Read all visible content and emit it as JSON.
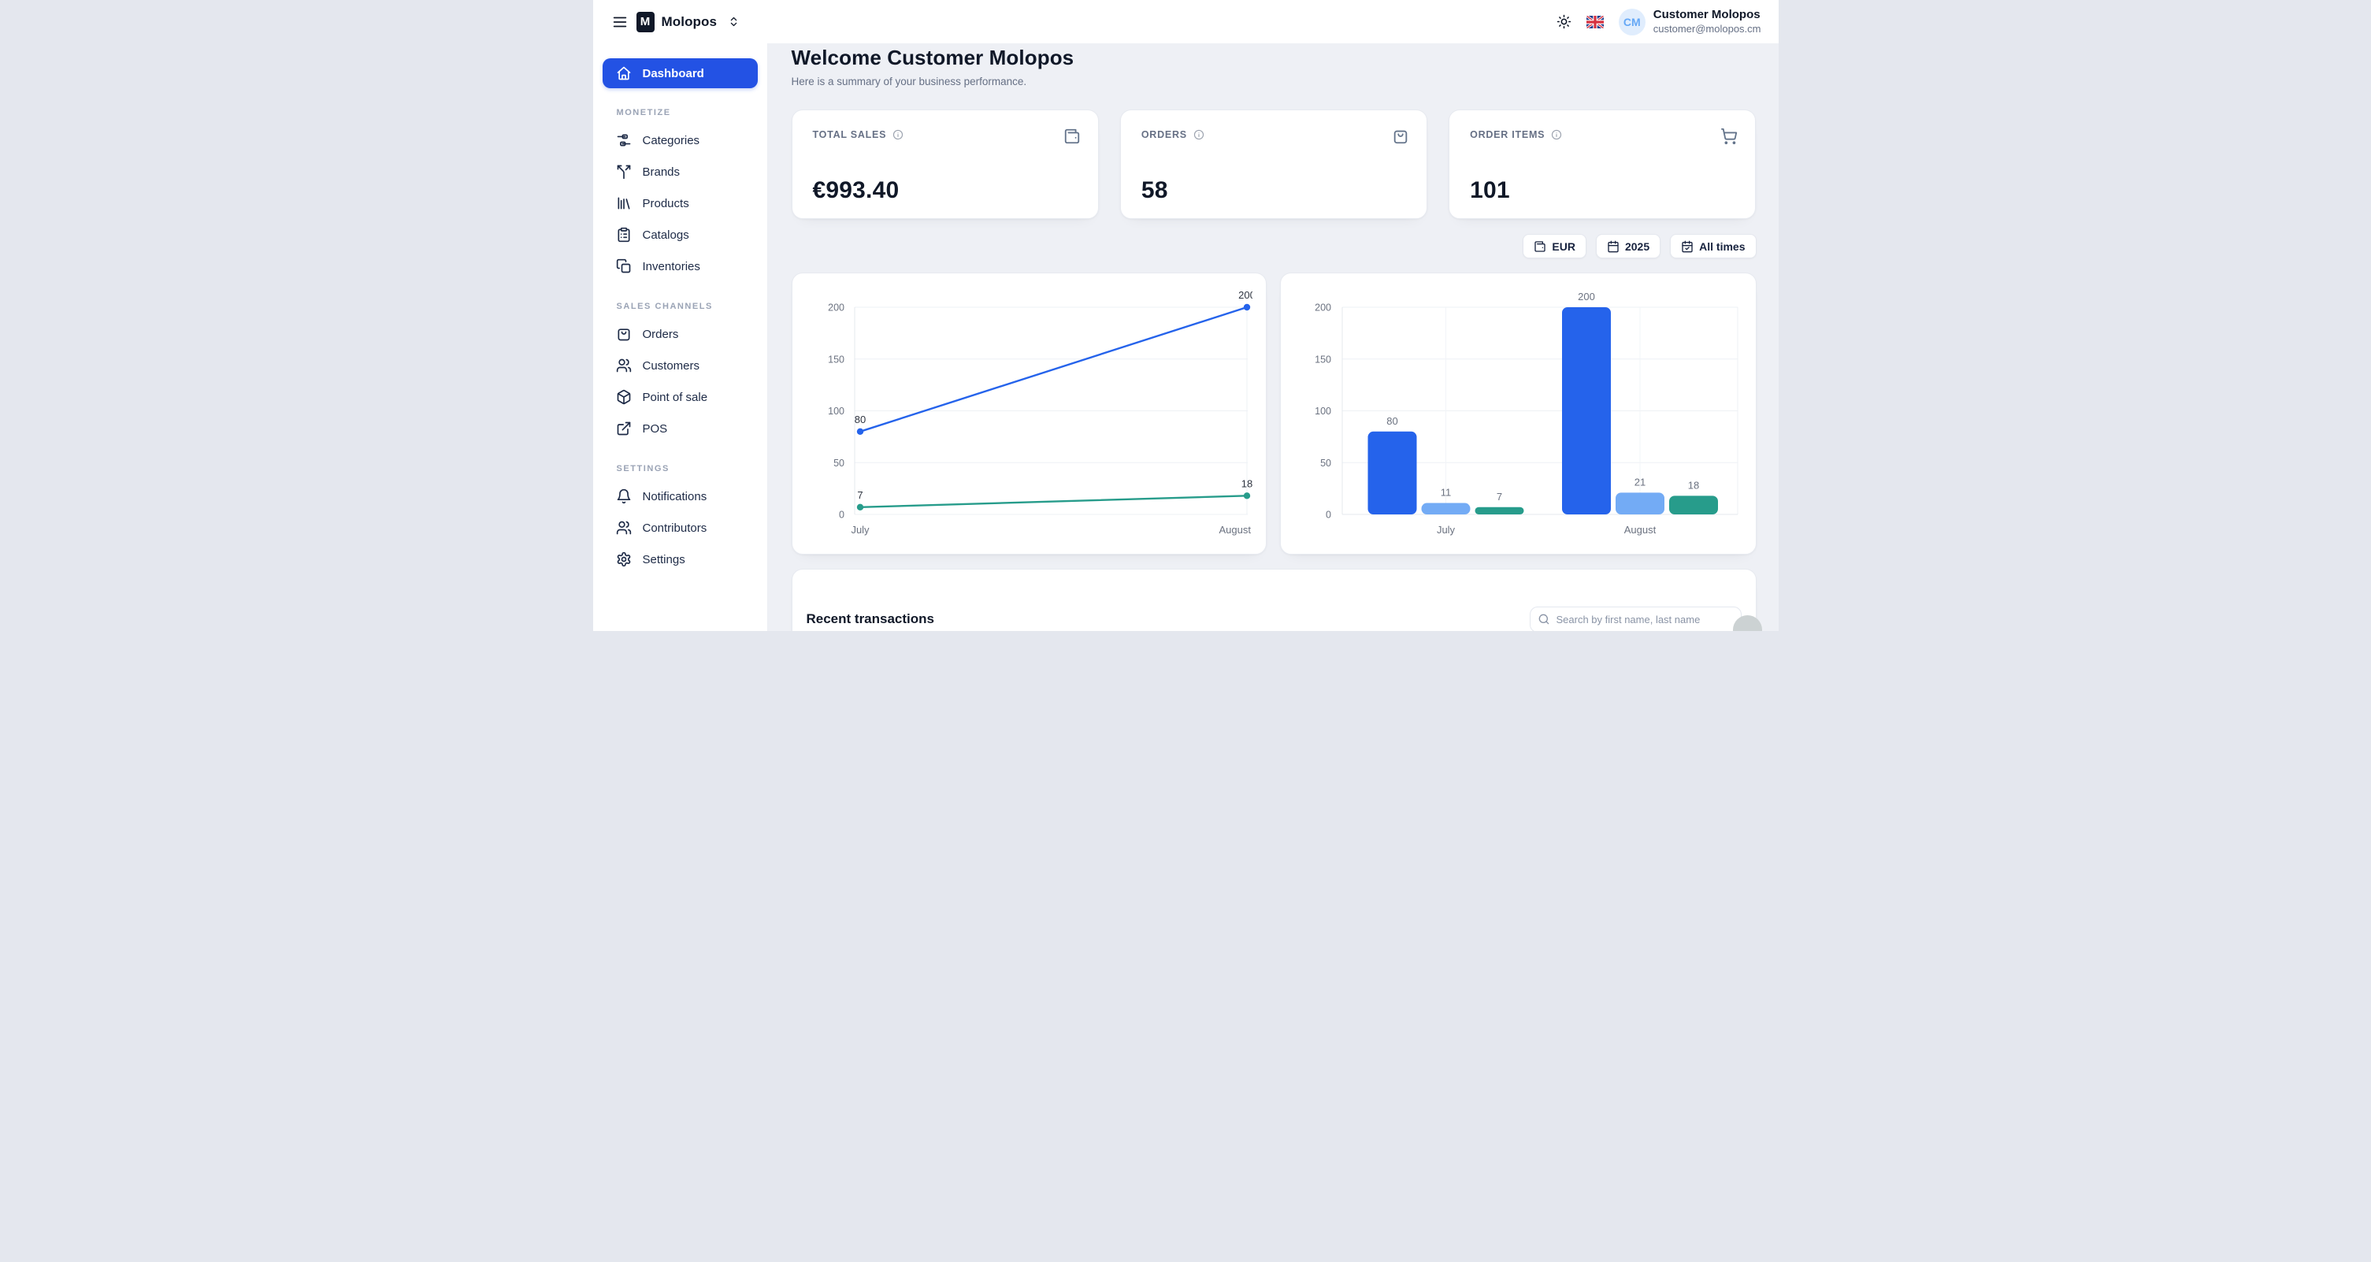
{
  "colors": {
    "accent_blue": "#2352e4",
    "chart_blue": "#2563eb",
    "chart_light_blue": "#73abf5",
    "chart_teal": "#279c8b",
    "page_background": "#eef0f5",
    "avatar_background": "#e0edfd",
    "avatar_text": "#65a8f6"
  },
  "header": {
    "brand_initial": "M",
    "brand_name": "Molopos",
    "user_name": "Customer Molopos",
    "user_email": "customer@molopos.cm",
    "avatar_initials": "CM",
    "icons": {
      "menu": "menu-icon",
      "workspace_switcher": "chevrons-up-down-icon",
      "theme": "sun-icon",
      "language": "uk-flag-icon"
    }
  },
  "sidebar": {
    "sections": [
      {
        "label": null,
        "items": [
          {
            "label": "Dashboard",
            "icon": "home-icon",
            "active": true
          }
        ]
      },
      {
        "label": "MONETIZE",
        "items": [
          {
            "label": "Categories",
            "icon": "categories-icon"
          },
          {
            "label": "Brands",
            "icon": "split-arrows-icon"
          },
          {
            "label": "Products",
            "icon": "library-icon"
          },
          {
            "label": "Catalogs",
            "icon": "clipboard-list-icon"
          },
          {
            "label": "Inventories",
            "icon": "copy-icon"
          }
        ]
      },
      {
        "label": "SALES CHANNELS",
        "items": [
          {
            "label": "Orders",
            "icon": "shopping-bag-icon"
          },
          {
            "label": "Customers",
            "icon": "users-icon"
          },
          {
            "label": "Point of sale",
            "icon": "package-icon"
          },
          {
            "label": "POS",
            "icon": "external-link-icon"
          }
        ]
      },
      {
        "label": "SETTINGS",
        "items": [
          {
            "label": "Notifications",
            "icon": "bell-icon"
          },
          {
            "label": "Contributors",
            "icon": "users-icon"
          },
          {
            "label": "Settings",
            "icon": "gear-icon"
          }
        ]
      }
    ]
  },
  "main": {
    "welcome_title": "Welcome Customer Molopos",
    "welcome_subtitle": "Here is a summary of your business performance.",
    "stats": [
      {
        "label": "TOTAL SALES",
        "value": "€993.40",
        "icon": "wallet-icon",
        "info_icon": "info-icon"
      },
      {
        "label": "ORDERS",
        "value": "58",
        "icon": "shopping-bag-icon",
        "info_icon": "info-icon"
      },
      {
        "label": "ORDER ITEMS",
        "value": "101",
        "icon": "shopping-cart-icon",
        "info_icon": "info-icon"
      }
    ],
    "filters": [
      {
        "label": "EUR",
        "icon": "wallet-icon"
      },
      {
        "label": "2025",
        "icon": "calendar-icon"
      },
      {
        "label": "All times",
        "icon": "calendar-check-icon"
      }
    ],
    "transactions": {
      "title": "Recent transactions",
      "search_placeholder": "Search by first name, last name",
      "search_icon": "search-icon"
    }
  },
  "chart_data": [
    {
      "type": "line",
      "title": "",
      "x": [
        "July",
        "August"
      ],
      "series": [
        {
          "name": "series-blue",
          "values": [
            80,
            200
          ],
          "color": "#2563eb"
        },
        {
          "name": "series-teal",
          "values": [
            7,
            18
          ],
          "color": "#279c8b"
        }
      ],
      "ylim": [
        0,
        200
      ],
      "yticks": [
        0,
        50,
        100,
        150,
        200
      ],
      "grid": true,
      "legend": "none",
      "point_labels": true
    },
    {
      "type": "bar",
      "title": "",
      "categories": [
        "July",
        "August"
      ],
      "series": [
        {
          "name": "series-blue",
          "values": [
            80,
            200
          ],
          "color": "#2563eb"
        },
        {
          "name": "series-light-blue",
          "values": [
            11,
            21
          ],
          "color": "#73abf5"
        },
        {
          "name": "series-teal",
          "values": [
            7,
            18
          ],
          "color": "#279c8b"
        }
      ],
      "ylim": [
        0,
        200
      ],
      "yticks": [
        0,
        50,
        100,
        150,
        200
      ],
      "grid": true,
      "legend": "none",
      "bar_labels": true
    }
  ]
}
